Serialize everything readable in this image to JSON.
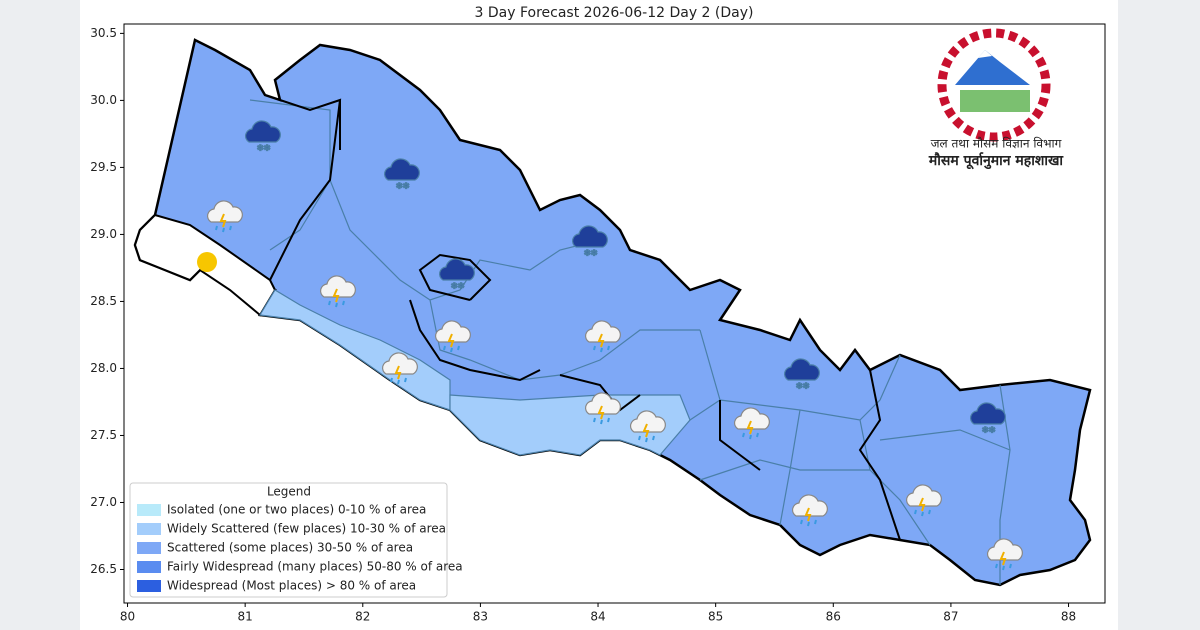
{
  "title": "3 Day Forecast 2026-06-12 Day 2 (Day)",
  "map": {
    "xlim": [
      79.97,
      88.31
    ],
    "ylim": [
      26.25,
      30.57
    ],
    "xticks": [
      80,
      81,
      82,
      83,
      84,
      85,
      86,
      87,
      88
    ],
    "yticks": [
      26.5,
      {
        "value": 27,
        "label": "27.0"
      },
      27.5,
      {
        "value": 28,
        "label": "28.0"
      },
      28.5,
      {
        "value": 29,
        "label": "29.0"
      },
      29.5,
      {
        "value": 30,
        "label": "30.0"
      },
      30.5
    ]
  },
  "logo": {
    "line1": "जल तथा मौसम विज्ञान विभाग",
    "line2": "मौसम पूर्वानुमान महाशाखा"
  },
  "legend": {
    "title": "Legend",
    "items": [
      {
        "label": "Isolated (one or two places)  0-10 % of area",
        "color": "#b8eafa"
      },
      {
        "label": "Widely Scattered (few places)  10-30 % of area",
        "color": "#a3cdfb"
      },
      {
        "label": "Scattered (some places)  30-50 % of area",
        "color": "#7ea8f6"
      },
      {
        "label": "Fairly Widespread (many places)  50-80 % of area",
        "color": "#5a8cf0"
      },
      {
        "label": "Widespread (Most places) > 80 % of area",
        "color": "#2c5fe0"
      }
    ]
  }
}
